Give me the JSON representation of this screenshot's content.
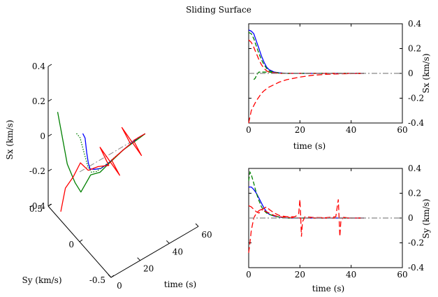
{
  "figure": {
    "title": "Sliding Surface"
  },
  "chart_data": [
    {
      "type": "line",
      "projection": "3d",
      "zlabel": "Sx (km/s)",
      "ylabel": "Sy (km/s)",
      "xlabel": "time (s)",
      "z_ticks": [
        "0.4",
        "0.2",
        "0",
        "-0.2",
        "-0.4"
      ],
      "y_ticks": [
        "0.5",
        "0",
        "-0.5"
      ],
      "x_ticks": [
        "0",
        "20",
        "40",
        "60"
      ],
      "zlim": [
        -0.4,
        0.4
      ],
      "ylim": [
        -0.5,
        0.5
      ],
      "xlim": [
        0,
        60
      ],
      "series": [
        {
          "color": "#0000ff",
          "style": "solid",
          "points": [
            [
              0,
              -0.05,
              0.24
            ],
            [
              2,
              -0.04,
              0.2
            ],
            [
              4,
              -0.02,
              0.1
            ],
            [
              6,
              0,
              0.02
            ],
            [
              8,
              0.02,
              -0.03
            ],
            [
              12,
              0.04,
              -0.06
            ],
            [
              16,
              0.03,
              -0.07
            ],
            [
              20,
              0.02,
              -0.06
            ],
            [
              25,
              0.01,
              -0.04
            ],
            [
              30,
              0.0,
              -0.02
            ],
            [
              35,
              0,
              -0.01
            ],
            [
              40,
              0,
              0
            ],
            [
              45,
              0,
              0
            ]
          ]
        },
        {
          "color": "#008000",
          "style": "dotted",
          "points": [
            [
              0,
              0.05,
              0.2
            ],
            [
              2,
              0.04,
              0.17
            ],
            [
              4,
              0.02,
              0.08
            ],
            [
              6,
              0.01,
              0.0
            ],
            [
              8,
              0.0,
              -0.04
            ],
            [
              12,
              0.01,
              -0.06
            ],
            [
              20,
              0.01,
              -0.05
            ],
            [
              30,
              0,
              -0.02
            ],
            [
              45,
              0,
              0
            ]
          ]
        },
        {
          "color": "#008000",
          "style": "solid",
          "points": [
            [
              0,
              0.35,
              0.2
            ],
            [
              0.5,
              0.3,
              0.1
            ],
            [
              1,
              0.22,
              -0.05
            ],
            [
              2,
              0.12,
              -0.12
            ],
            [
              3,
              0.05,
              -0.15
            ],
            [
              5,
              0.02,
              -0.1
            ],
            [
              8,
              0.01,
              -0.06
            ],
            [
              14,
              0.0,
              -0.07
            ],
            [
              20,
              0.0,
              -0.05
            ],
            [
              30,
              0,
              -0.02
            ],
            [
              45,
              0,
              0
            ]
          ]
        },
        {
          "color": "#ff0000",
          "style": "solid",
          "points": [
            [
              0,
              0.3,
              -0.35
            ],
            [
              1,
              0.25,
              -0.2
            ],
            [
              2,
              0.15,
              -0.1
            ],
            [
              4,
              0.08,
              0.0
            ],
            [
              8,
              0.05,
              -0.05
            ],
            [
              14,
              0.03,
              -0.05
            ],
            [
              20,
              0.0,
              -0.06
            ],
            [
              20.5,
              0.15,
              -0.02
            ],
            [
              21,
              -0.15,
              -0.06
            ],
            [
              22,
              0.0,
              -0.04
            ],
            [
              30,
              0,
              -0.02
            ],
            [
              35,
              0,
              -0.01
            ],
            [
              35.5,
              0.15,
              0.02
            ],
            [
              36,
              -0.15,
              -0.02
            ],
            [
              37,
              0,
              0
            ],
            [
              45,
              0,
              0
            ]
          ]
        }
      ]
    },
    {
      "type": "line",
      "xlabel": "time (s)",
      "ylabel": "Sx (km/s)",
      "xlim": [
        0,
        60
      ],
      "ylim": [
        -0.4,
        0.4
      ],
      "x_ticks": [
        "0",
        "20",
        "40",
        "60"
      ],
      "y_ticks": [
        "0.4",
        "0.2",
        "0",
        "-0.2",
        "-0.4"
      ],
      "series": [
        {
          "color": "#0000ff",
          "dash": "",
          "x": [
            0,
            1,
            2,
            3,
            4,
            5,
            6,
            7,
            8,
            10,
            12,
            15,
            20,
            30,
            45
          ],
          "y": [
            0.35,
            0.34,
            0.32,
            0.26,
            0.2,
            0.14,
            0.09,
            0.05,
            0.03,
            0.01,
            0.005,
            0,
            0,
            0,
            0
          ]
        },
        {
          "color": "#008000",
          "dash": "6 3",
          "x": [
            0,
            1,
            2,
            3,
            4,
            5,
            6,
            7,
            8,
            10,
            12,
            15,
            20,
            30,
            45
          ],
          "y": [
            0.33,
            0.32,
            0.28,
            0.22,
            0.16,
            0.11,
            0.07,
            0.04,
            0.02,
            0.01,
            0,
            0,
            0,
            0,
            0
          ]
        },
        {
          "color": "#008000",
          "dash": "6 3",
          "x": [
            2,
            2.5,
            3,
            3.5,
            4,
            5,
            6,
            8,
            10,
            15,
            20,
            45
          ],
          "y": [
            -0.05,
            -0.04,
            -0.02,
            0,
            0.01,
            0.01,
            0.01,
            0.01,
            0.005,
            0,
            0,
            0
          ]
        },
        {
          "color": "#ff0000",
          "dash": "8 4",
          "x": [
            0,
            1,
            2,
            3,
            4,
            5,
            6,
            7,
            8,
            10,
            12,
            15,
            20,
            45
          ],
          "y": [
            0.27,
            0.25,
            0.21,
            0.16,
            0.11,
            0.07,
            0.04,
            0.02,
            0.01,
            0.005,
            0,
            0,
            0,
            0
          ]
        },
        {
          "color": "#ff0000",
          "dash": "8 4",
          "x": [
            0,
            1,
            2,
            3,
            4,
            5,
            6,
            8,
            10,
            12,
            15,
            20,
            25,
            30,
            35,
            40,
            45
          ],
          "y": [
            -0.4,
            -0.3,
            -0.26,
            -0.22,
            -0.19,
            -0.16,
            -0.14,
            -0.11,
            -0.09,
            -0.07,
            -0.05,
            -0.03,
            -0.015,
            -0.008,
            -0.004,
            -0.002,
            0
          ]
        },
        {
          "color": "#888888",
          "dash": "8 3 2 3",
          "x": [
            0,
            60
          ],
          "y": [
            0,
            0
          ]
        }
      ]
    },
    {
      "type": "line",
      "xlabel": "time (s)",
      "ylabel": "Sy (km/s)",
      "xlim": [
        0,
        60
      ],
      "ylim": [
        -0.4,
        0.4
      ],
      "x_ticks": [
        "0",
        "20",
        "40",
        "60"
      ],
      "y_ticks": [
        "0.4",
        "0.2",
        "0",
        "-0.2",
        "-0.4"
      ],
      "series": [
        {
          "color": "#0000ff",
          "dash": "",
          "x": [
            0,
            1,
            2,
            3,
            4,
            5,
            6,
            7,
            8,
            10,
            12,
            15,
            20,
            30,
            45
          ],
          "y": [
            0.25,
            0.25,
            0.23,
            0.2,
            0.16,
            0.12,
            0.08,
            0.05,
            0.03,
            0.015,
            0.008,
            0,
            0,
            0,
            0
          ]
        },
        {
          "color": "#008000",
          "dash": "6 3",
          "x": [
            0,
            0.5,
            1,
            2,
            3,
            4,
            5,
            6,
            7,
            8,
            10,
            12,
            15,
            20,
            30,
            45
          ],
          "y": [
            0.3,
            0.37,
            0.35,
            0.28,
            0.2,
            0.14,
            0.09,
            0.06,
            0.04,
            0.03,
            0.015,
            0.008,
            0,
            0,
            0,
            0
          ]
        },
        {
          "color": "#ff0000",
          "dash": "8 4",
          "x": [
            0,
            1,
            2,
            3,
            4,
            5,
            6,
            7,
            8,
            10,
            12,
            15,
            18,
            19.5,
            20,
            20.3,
            20.6,
            21,
            22,
            25,
            30,
            34,
            35,
            35.3,
            35.6,
            36,
            37,
            40,
            45
          ],
          "y": [
            0.1,
            0.09,
            0.07,
            0.05,
            0.04,
            0.06,
            0.08,
            0.09,
            0.07,
            0.04,
            0.02,
            0.01,
            0.01,
            0.03,
            0.15,
            0.02,
            -0.15,
            -0.03,
            0.01,
            0.005,
            0.003,
            0.01,
            0.15,
            0,
            -0.15,
            -0.02,
            0.005,
            0,
            0
          ]
        },
        {
          "color": "#ff0000",
          "dash": "8 4",
          "x": [
            0,
            0.5,
            1,
            2,
            3,
            4,
            5,
            6,
            7,
            8,
            10,
            12,
            15,
            20,
            30,
            45
          ],
          "y": [
            -0.28,
            -0.2,
            -0.1,
            0.0,
            0.04,
            0.06,
            0.07,
            0.06,
            0.05,
            0.04,
            0.02,
            0.01,
            0.005,
            0,
            0,
            0
          ]
        },
        {
          "color": "#888888",
          "dash": "8 3 2 3",
          "x": [
            0,
            60
          ],
          "y": [
            0,
            0
          ]
        }
      ]
    }
  ]
}
